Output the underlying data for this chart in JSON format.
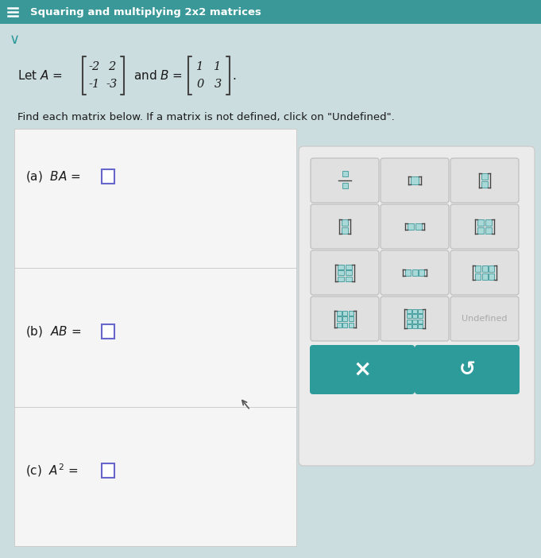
{
  "title": "Squaring and multiplying 2x2 matrices",
  "title_bg": "#3a9898",
  "title_fg": "#ffffff",
  "bg_color": "#ccdde0",
  "panel_bg": "#f5f5f5",
  "panel_border": "#cccccc",
  "matrix_A": [
    [
      -2,
      2
    ],
    [
      -1,
      -3
    ]
  ],
  "matrix_B": [
    [
      1,
      1
    ],
    [
      0,
      3
    ]
  ],
  "find_text": "Find each matrix below. If a matrix is not defined, click on \"Undefined\".",
  "teal": "#2e9b9b",
  "button_bg": "#e4e4e4",
  "button_border": "#cccccc",
  "answer_box_color": "#6666cc",
  "rp_bg": "#ebebeb",
  "rp_border": "#cccccc",
  "undefined_color": "#aaaaaa",
  "icon_fill": "#a8d8d8",
  "icon_stroke": "#3a9898",
  "bracket_color": "#444444",
  "cursor_color": "#555555"
}
